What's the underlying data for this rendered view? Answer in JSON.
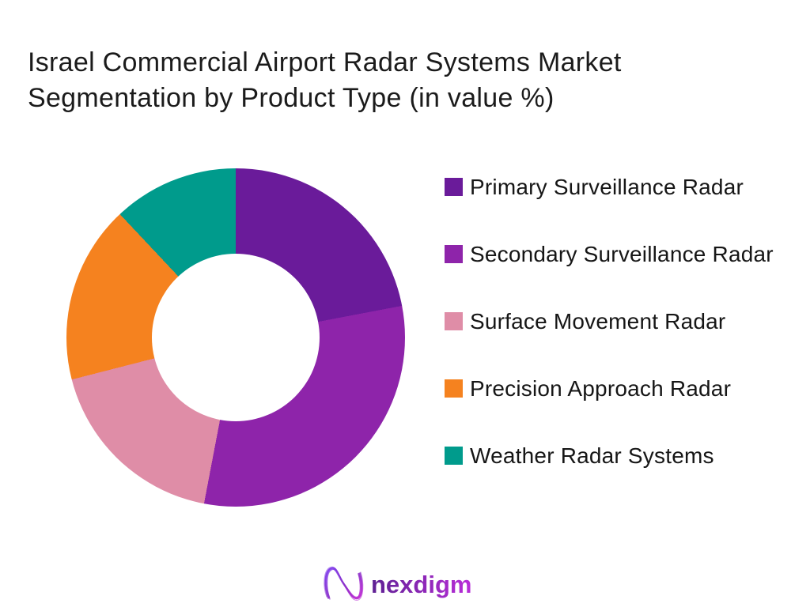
{
  "title": {
    "line1": "Israel Commercial Airport Radar Systems Market",
    "line2": "Segmentation by Product Type (in value %)"
  },
  "chart_data": {
    "type": "pie",
    "subtype": "donut",
    "title": "Israel Commercial Airport Radar Systems Market Segmentation by Product Type (in value %)",
    "categories": [
      "Primary Surveillance Radar",
      "Secondary Surveillance Radar",
      "Surface Movement Radar",
      "Precision Approach Radar",
      "Weather Radar Systems"
    ],
    "values": [
      22,
      31,
      18,
      17,
      12
    ],
    "unit": "%",
    "colors": [
      "#6A1B9A",
      "#8E24AA",
      "#DF8DA7",
      "#F5821F",
      "#009B8C"
    ],
    "start_angle_deg": 0,
    "direction": "clockwise",
    "donut_hole_ratio": 0.5,
    "legend_position": "right",
    "data_labels_visible": false,
    "background": "#FFFFFF"
  },
  "legend": {
    "items": [
      {
        "label": "Primary Surveillance Radar",
        "color": "#6A1B9A"
      },
      {
        "label": "Secondary Surveillance Radar",
        "color": "#8E24AA"
      },
      {
        "label": "Surface Movement Radar",
        "color": "#DF8DA7"
      },
      {
        "label": "Precision Approach Radar",
        "color": "#F5821F"
      },
      {
        "label": "Weather Radar Systems",
        "color": "#009B8C"
      }
    ]
  },
  "logo": {
    "brand": "nexdigm",
    "mark": "wave-n-monogram",
    "gradient_start": "#5E2193",
    "gradient_end": "#B92DD9"
  }
}
